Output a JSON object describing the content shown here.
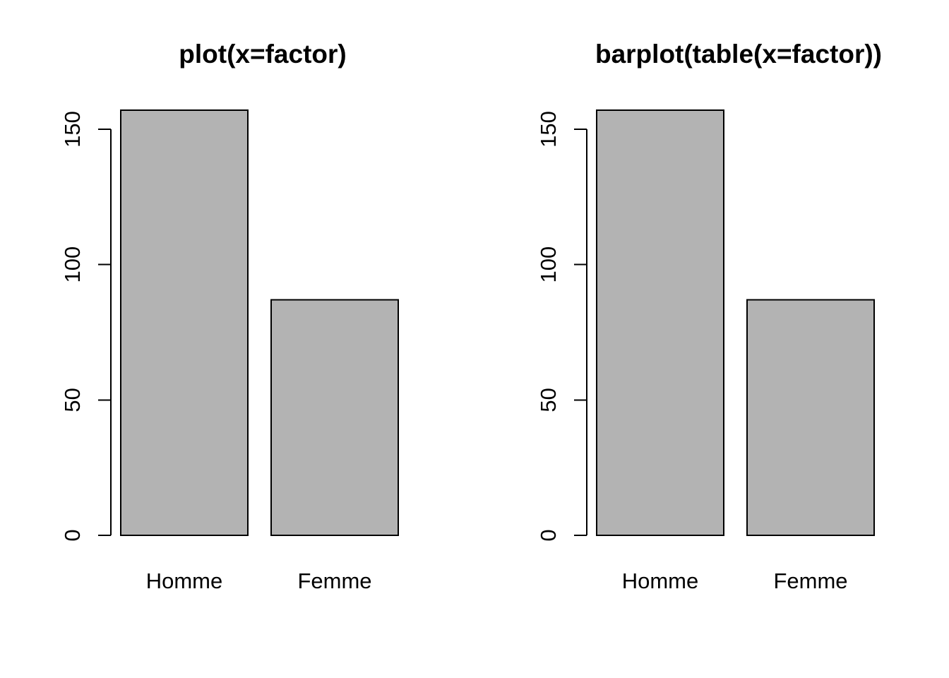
{
  "figure": {
    "background": "#ffffff",
    "text_color": "#000000"
  },
  "chart_data": [
    {
      "type": "bar",
      "title": "plot(x=factor)",
      "categories": [
        "Homme",
        "Femme"
      ],
      "values": [
        157,
        87
      ],
      "xlabel": "",
      "ylabel": "",
      "ylim": [
        0,
        150
      ],
      "yticks": [
        0,
        50,
        100,
        150
      ],
      "grid": false,
      "legend": false,
      "bar_fill": "#b3b3b3",
      "bar_stroke": "#000000",
      "axis_color": "#000000"
    },
    {
      "type": "bar",
      "title": "barplot(table(x=factor))",
      "categories": [
        "Homme",
        "Femme"
      ],
      "values": [
        157,
        87
      ],
      "xlabel": "",
      "ylabel": "",
      "ylim": [
        0,
        150
      ],
      "yticks": [
        0,
        50,
        100,
        150
      ],
      "grid": false,
      "legend": false,
      "bar_fill": "#b3b3b3",
      "bar_stroke": "#000000",
      "axis_color": "#000000"
    }
  ]
}
